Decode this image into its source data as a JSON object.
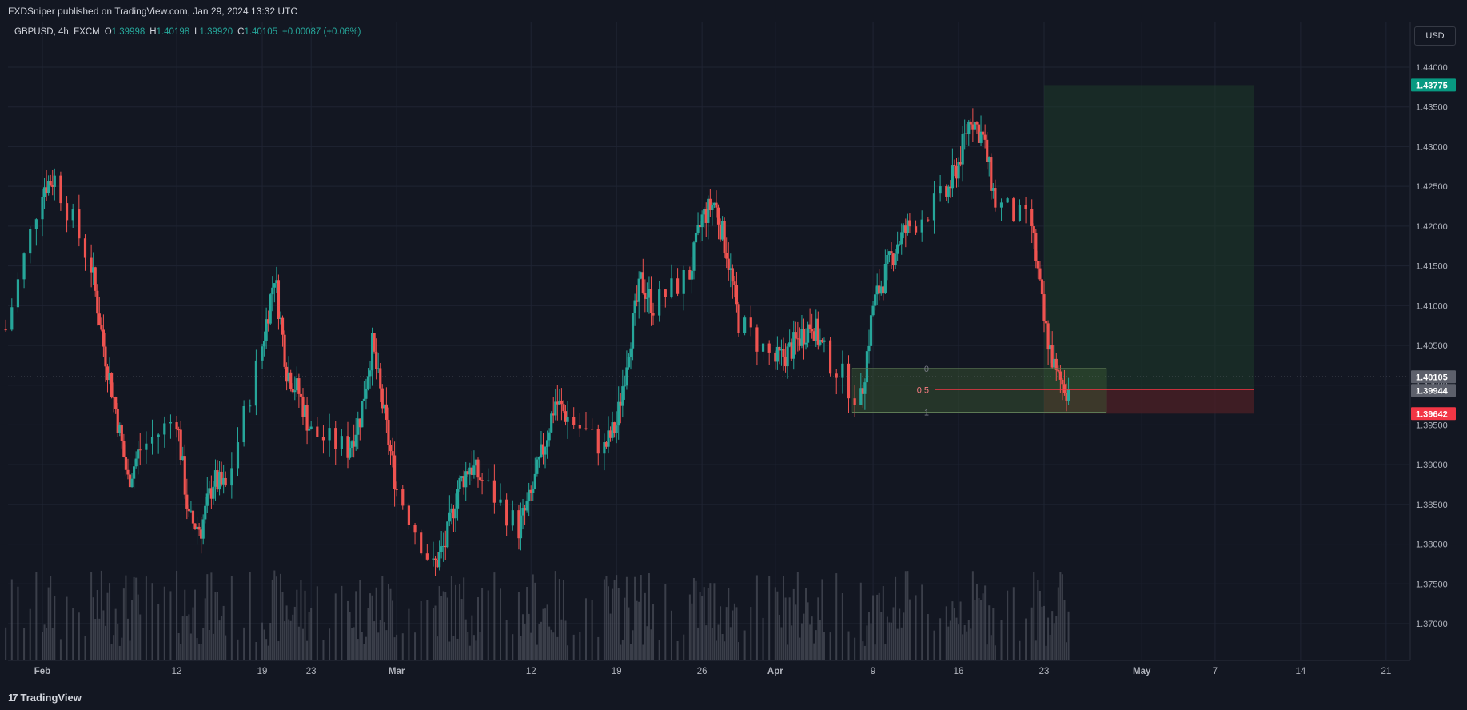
{
  "header": {
    "publisher_text": "FXDSniper published on TradingView.com, Jan 29, 2024 13:32 UTC"
  },
  "legend": {
    "symbol": "GBPUSD, 4h, FXCM",
    "o_label": "O",
    "o_value": "1.39998",
    "h_label": "H",
    "h_value": "1.40198",
    "l_label": "L",
    "l_value": "1.39920",
    "c_label": "C",
    "c_value": "1.40105",
    "change": "+0.00087 (+0.06%)"
  },
  "currency_button": "USD",
  "footer": {
    "brand": "TradingView",
    "logo_glyph": "17"
  },
  "colors": {
    "background": "#131722",
    "grid": "#1f2433",
    "up": "#26a69a",
    "down": "#ef5350",
    "volume": "#5d606b",
    "target_zone": "#1e3a2a",
    "stop_zone": "#4a1f26",
    "target_label": "#089981",
    "stop_label": "#f23645",
    "fib_line": "#f23645"
  },
  "chart_data": {
    "type": "candlestick",
    "symbol": "GBPUSD",
    "timeframe": "4h",
    "x_ticks": [
      "Feb",
      "12",
      "19",
      "23",
      "Mar",
      "12",
      "19",
      "26",
      "Apr",
      "9",
      "16",
      "23",
      "May",
      "7",
      "14",
      "21"
    ],
    "y_ticks": [
      "1.44000",
      "1.43500",
      "1.43000",
      "1.42500",
      "1.42000",
      "1.41500",
      "1.41000",
      "1.40500",
      "1.40000",
      "1.39500",
      "1.39000",
      "1.38500",
      "1.38000",
      "1.37500",
      "1.37000"
    ],
    "ylim": [
      1.3655,
      1.4455
    ],
    "grid": true,
    "price_labels": [
      {
        "name": "target",
        "value": "1.43775",
        "color": "#089981"
      },
      {
        "name": "current",
        "value": "1.40105",
        "color": "#5d606b"
      },
      {
        "name": "entry",
        "value": "1.39944",
        "color": "#5d606b"
      },
      {
        "name": "stop",
        "value": "1.39642",
        "color": "#f23645"
      }
    ],
    "fib_levels": [
      {
        "label": "0",
        "price": 1.4021
      },
      {
        "label": "0.5",
        "price": 1.39944
      },
      {
        "label": "1",
        "price": 1.3966
      }
    ],
    "position_tool": {
      "entry": 1.39944,
      "target": 1.43775,
      "stop": 1.39642
    },
    "anchors": [
      [
        "2024-01-29",
        1.407
      ],
      [
        "2024-02-01",
        1.425
      ],
      [
        "2024-02-02",
        1.426
      ],
      [
        "2024-02-05",
        1.415
      ],
      [
        "2024-02-06",
        1.405
      ],
      [
        "2024-02-07",
        1.397
      ],
      [
        "2024-02-08",
        1.388
      ],
      [
        "2024-02-09",
        1.392
      ],
      [
        "2024-02-12",
        1.396
      ],
      [
        "2024-02-13",
        1.383
      ],
      [
        "2024-02-14",
        1.382
      ],
      [
        "2024-02-15",
        1.388
      ],
      [
        "2024-02-16",
        1.387
      ],
      [
        "2024-02-19",
        1.405
      ],
      [
        "2024-02-20",
        1.414
      ],
      [
        "2024-02-21",
        1.402
      ],
      [
        "2024-02-22",
        1.399
      ],
      [
        "2024-02-23",
        1.394
      ],
      [
        "2024-02-26",
        1.392
      ],
      [
        "2024-02-27",
        1.396
      ],
      [
        "2024-02-28",
        1.405
      ],
      [
        "2024-02-29",
        1.396
      ],
      [
        "2024-03-01",
        1.387
      ],
      [
        "2024-03-04",
        1.377
      ],
      [
        "2024-03-05",
        1.38
      ],
      [
        "2024-03-06",
        1.387
      ],
      [
        "2024-03-07",
        1.39
      ],
      [
        "2024-03-08",
        1.388
      ],
      [
        "2024-03-11",
        1.382
      ],
      [
        "2024-03-12",
        1.386
      ],
      [
        "2024-03-13",
        1.392
      ],
      [
        "2024-03-14",
        1.398
      ],
      [
        "2024-03-15",
        1.396
      ],
      [
        "2024-03-18",
        1.392
      ],
      [
        "2024-03-19",
        1.395
      ],
      [
        "2024-03-20",
        1.405
      ],
      [
        "2024-03-21",
        1.413
      ],
      [
        "2024-03-22",
        1.41
      ],
      [
        "2024-03-25",
        1.414
      ],
      [
        "2024-03-26",
        1.421
      ],
      [
        "2024-03-27",
        1.423
      ],
      [
        "2024-03-28",
        1.417
      ],
      [
        "2024-03-29",
        1.408
      ],
      [
        "2024-04-01",
        1.403
      ],
      [
        "2024-04-02",
        1.404
      ],
      [
        "2024-04-03",
        1.406
      ],
      [
        "2024-04-04",
        1.408
      ],
      [
        "2024-04-05",
        1.404
      ],
      [
        "2024-04-08",
        1.398
      ],
      [
        "2024-04-09",
        1.41
      ],
      [
        "2024-04-10",
        1.414
      ],
      [
        "2024-04-11",
        1.418
      ],
      [
        "2024-04-12",
        1.42
      ],
      [
        "2024-04-15",
        1.424
      ],
      [
        "2024-04-16",
        1.428
      ],
      [
        "2024-04-17",
        1.434
      ],
      [
        "2024-04-18",
        1.431
      ],
      [
        "2024-04-19",
        1.423
      ],
      [
        "2024-04-22",
        1.42
      ],
      [
        "2024-04-23",
        1.408
      ],
      [
        "2024-04-24",
        1.401
      ],
      [
        "2024-04-25",
        1.39944
      ]
    ]
  }
}
